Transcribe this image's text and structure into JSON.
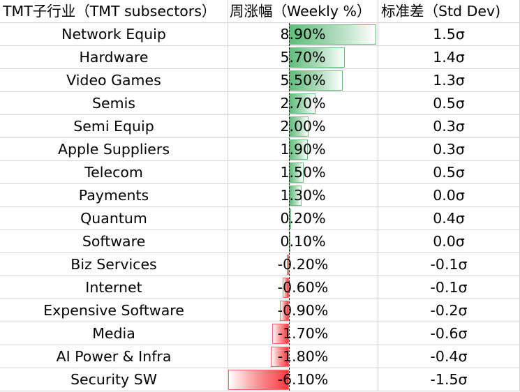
{
  "header": {
    "col_name": "TMT子行业（TMT subsectors）",
    "col_weekly": "周涨幅（Weekly %）",
    "col_std": "标准差（Std Dev)"
  },
  "colors": {
    "positive_bar": "#63be7b",
    "negative_bar": "#f8696b"
  },
  "table": {
    "rows": [
      {
        "name": "Network Equip",
        "weekly": "8.90%",
        "weekly_value": 8.9,
        "std": "1.5σ"
      },
      {
        "name": "Hardware",
        "weekly": "5.70%",
        "weekly_value": 5.7,
        "std": "1.4σ"
      },
      {
        "name": "Video Games",
        "weekly": "5.50%",
        "weekly_value": 5.5,
        "std": "1.3σ"
      },
      {
        "name": "Semis",
        "weekly": "2.70%",
        "weekly_value": 2.7,
        "std": "0.5σ"
      },
      {
        "name": "Semi Equip",
        "weekly": "2.00%",
        "weekly_value": 2.0,
        "std": "0.3σ"
      },
      {
        "name": "Apple Suppliers",
        "weekly": "1.90%",
        "weekly_value": 1.9,
        "std": "0.3σ"
      },
      {
        "name": "Telecom",
        "weekly": "1.50%",
        "weekly_value": 1.5,
        "std": "0.5σ"
      },
      {
        "name": "Payments",
        "weekly": "1.30%",
        "weekly_value": 1.3,
        "std": "0.0σ"
      },
      {
        "name": "Quantum",
        "weekly": "0.20%",
        "weekly_value": 0.2,
        "std": "0.4σ"
      },
      {
        "name": "Software",
        "weekly": "0.10%",
        "weekly_value": 0.1,
        "std": "0.0σ"
      },
      {
        "name": "Biz Services",
        "weekly": "-0.20%",
        "weekly_value": -0.2,
        "std": "-0.1σ"
      },
      {
        "name": "Internet",
        "weekly": "-0.60%",
        "weekly_value": -0.6,
        "std": "-0.1σ"
      },
      {
        "name": "Expensive Software",
        "weekly": "-0.90%",
        "weekly_value": -0.9,
        "std": "-0.2σ"
      },
      {
        "name": "Media",
        "weekly": "-1.70%",
        "weekly_value": -1.7,
        "std": "-0.6σ"
      },
      {
        "name": "AI Power & Infra",
        "weekly": "-1.80%",
        "weekly_value": -1.8,
        "std": "-0.4σ"
      },
      {
        "name": "Security SW",
        "weekly": "-6.10%",
        "weekly_value": -6.1,
        "std": "-1.5σ"
      }
    ]
  }
}
